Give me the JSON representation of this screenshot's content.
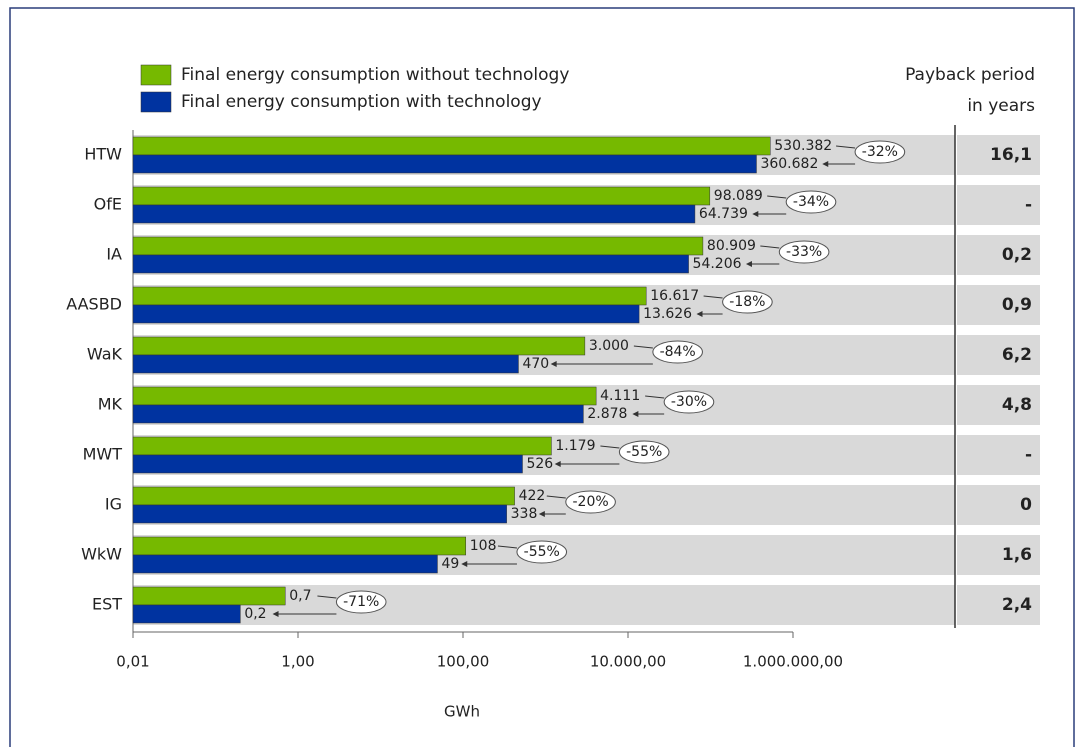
{
  "chart_data": {
    "type": "bar",
    "orientation": "horizontal",
    "log_scale": true,
    "categories": [
      "HTW",
      "OfE",
      "IA",
      "AASBD",
      "WaK",
      "MK",
      "MWT",
      "IG",
      "WkW",
      "EST"
    ],
    "series": [
      {
        "name": "Final energy consumption without technology",
        "color": "#76b900",
        "values": [
          530382,
          98089,
          80909,
          16617,
          3000,
          4111,
          1179,
          422,
          108,
          0.7
        ],
        "value_labels": [
          "530.382",
          "98.089",
          "80.909",
          "16.617",
          "3.000",
          "4.111",
          "1.179",
          "422",
          "108",
          "0,7"
        ]
      },
      {
        "name": "Final energy consumption with technology",
        "color": "#0033a0",
        "values": [
          360682,
          64739,
          54206,
          13626,
          470,
          2878,
          526,
          338,
          49,
          0.2
        ],
        "value_labels": [
          "360.682",
          "64.739",
          "54.206",
          "13.626",
          "470",
          "2.878",
          "526",
          "338",
          "49",
          "0,2"
        ]
      }
    ],
    "reduction": {
      "values": [
        -32,
        -34,
        -33,
        -18,
        -84,
        -30,
        -55,
        -20,
        -55,
        -71
      ],
      "value_labels": [
        "-32%",
        "-34%",
        "-33%",
        "-18%",
        "-84%",
        "-30%",
        "-55%",
        "-20%",
        "-55%",
        "-71%"
      ]
    },
    "payback": {
      "title": [
        "Payback period",
        "in years"
      ],
      "values": [
        "16,1",
        "-",
        "0,2",
        "0,9",
        "6,2",
        "4,8",
        "-",
        "0",
        "1,6",
        "2,4"
      ]
    },
    "xlabel": "GWh",
    "xlim": [
      0.01,
      1000000
    ],
    "xticks": [
      {
        "value": 0.01,
        "label": "0,01"
      },
      {
        "value": 1,
        "label": "1,00"
      },
      {
        "value": 100,
        "label": "100,00"
      },
      {
        "value": 10000,
        "label": "10.000,00"
      },
      {
        "value": 1000000,
        "label": "1.000.000,00"
      }
    ]
  }
}
